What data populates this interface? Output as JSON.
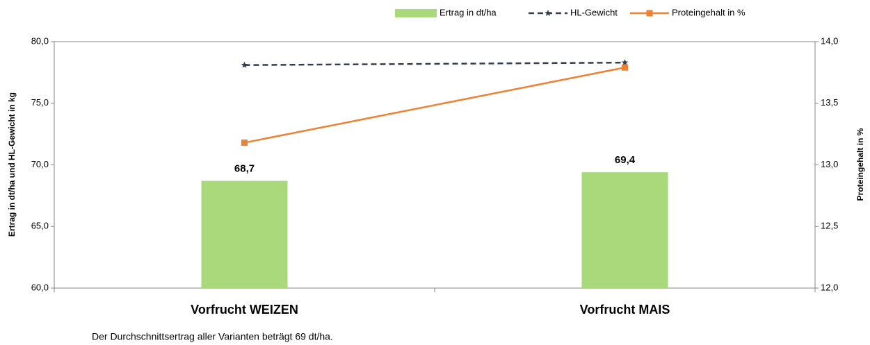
{
  "chart_data": {
    "type": "bar",
    "categories": [
      "Vorfrucht WEIZEN",
      "Vorfrucht MAIS"
    ],
    "series": [
      {
        "name": "Ertrag in dt/ha",
        "type": "bar",
        "color": "#aad97c",
        "values": [
          68.7,
          69.4
        ],
        "value_labels": [
          "68,7",
          "69,4"
        ]
      },
      {
        "name": "HL-Gewicht",
        "type": "line",
        "color": "#333f50",
        "dashed": true,
        "marker": "star",
        "values": [
          78.1,
          78.3
        ]
      },
      {
        "name": "Proteingehalt in %",
        "type": "line",
        "color": "#f08133",
        "marker": "square",
        "axis": "y2",
        "values": [
          13.18,
          13.79
        ]
      }
    ],
    "ylabel": "Ertrag in dt/ha und HL-Gewicht in kg",
    "y2label": "Proteingehalt in %",
    "ylim": [
      60,
      80
    ],
    "yticks": [
      {
        "value": 60,
        "label": "60,0"
      },
      {
        "value": 65,
        "label": "65,0"
      },
      {
        "value": 70,
        "label": "70,0"
      },
      {
        "value": 75,
        "label": "75,0"
      },
      {
        "value": 80,
        "label": "80,0"
      }
    ],
    "y2lim": [
      12,
      14
    ],
    "y2ticks": [
      {
        "value": 12,
        "label": "12,0"
      },
      {
        "value": 12.5,
        "label": "12,5"
      },
      {
        "value": 13,
        "label": "13,0"
      },
      {
        "value": 13.5,
        "label": "13,5"
      },
      {
        "value": 14,
        "label": "14,0"
      }
    ],
    "grid": false,
    "legend": "top",
    "note": "Der Durchschnittsertrag aller Varianten beträgt 69 dt/ha."
  }
}
